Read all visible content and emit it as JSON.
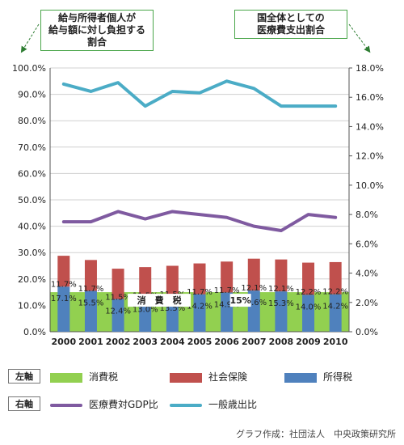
{
  "notes": {
    "left": "給与所得者個人が\n給与額に対し負担する割合",
    "right": "国全体としての\n医療費支出割合"
  },
  "legend": {
    "left_axis_tag": "左軸",
    "right_axis_tag": "右軸",
    "items_left": [
      {
        "label": "消費税",
        "color": "#92d050"
      },
      {
        "label": "社会保険",
        "color": "#c0504d"
      },
      {
        "label": "所得税",
        "color": "#4f81bd"
      }
    ],
    "items_right": [
      {
        "label": "医療費対GDP比",
        "color": "#7f5aa0"
      },
      {
        "label": "一般歳出比",
        "color": "#4bacc6"
      }
    ]
  },
  "credit": "グラフ作成：社団法人　中央政策研究所",
  "chart_data": {
    "type": "bar",
    "categories": [
      "2000",
      "2001",
      "2002",
      "2003",
      "2004",
      "2005",
      "2006",
      "2007",
      "2008",
      "2009",
      "2010"
    ],
    "left_axis": {
      "ylim": [
        0,
        100
      ],
      "ticks": [
        "0.0%",
        "10.0%",
        "20.0%",
        "30.0%",
        "40.0%",
        "50.0%",
        "60.0%",
        "70.0%",
        "80.0%",
        "90.0%",
        "100.0%"
      ]
    },
    "right_axis": {
      "ylim": [
        0,
        18
      ],
      "ticks": [
        "0.0%",
        "2.0%",
        "4.0%",
        "6.0%",
        "8.0%",
        "10.0%",
        "12.0%",
        "14.0%",
        "16.0%",
        "18.0%"
      ]
    },
    "bar_series": [
      {
        "name": "所得税",
        "axis": "left",
        "values": [
          17.1,
          15.5,
          12.4,
          13.0,
          13.5,
          14.2,
          14.9,
          15.6,
          15.3,
          14.0,
          14.2
        ],
        "labels": [
          "17.1%",
          "15.5%",
          "12.4%",
          "13.0%",
          "13.5%",
          "14.2%",
          "14.9%",
          "15.6%",
          "15.3%",
          "14.0%",
          "14.2%"
        ]
      },
      {
        "name": "社会保険",
        "axis": "left",
        "values": [
          11.7,
          11.7,
          11.5,
          11.5,
          11.5,
          11.7,
          11.7,
          12.1,
          12.1,
          12.2,
          12.2
        ],
        "labels": [
          "11.7%",
          "11.7%",
          "11.5%",
          "11.5%",
          "11.5%",
          "11.7%",
          "11.7%",
          "12.1%",
          "12.1%",
          "12.2%",
          "12.2%"
        ]
      },
      {
        "name": "消費税",
        "axis": "left",
        "values": [
          15,
          15,
          15,
          15,
          15,
          15,
          15,
          15,
          15,
          15,
          15
        ]
      }
    ],
    "consumption_tax_annotation": {
      "text": "消　費　税",
      "value_label": "15%"
    },
    "line_series": [
      {
        "name": "医療費対GDP比",
        "axis": "right",
        "values": [
          7.5,
          7.5,
          8.2,
          7.7,
          8.2,
          8.0,
          7.8,
          7.2,
          6.9,
          8.0,
          7.8
        ]
      },
      {
        "name": "一般歳出比",
        "axis": "right",
        "values": [
          16.9,
          16.4,
          17.0,
          15.4,
          16.4,
          16.3,
          17.1,
          16.6,
          15.4,
          15.4,
          15.4
        ]
      }
    ],
    "grid": true,
    "legend_position": "bottom"
  }
}
